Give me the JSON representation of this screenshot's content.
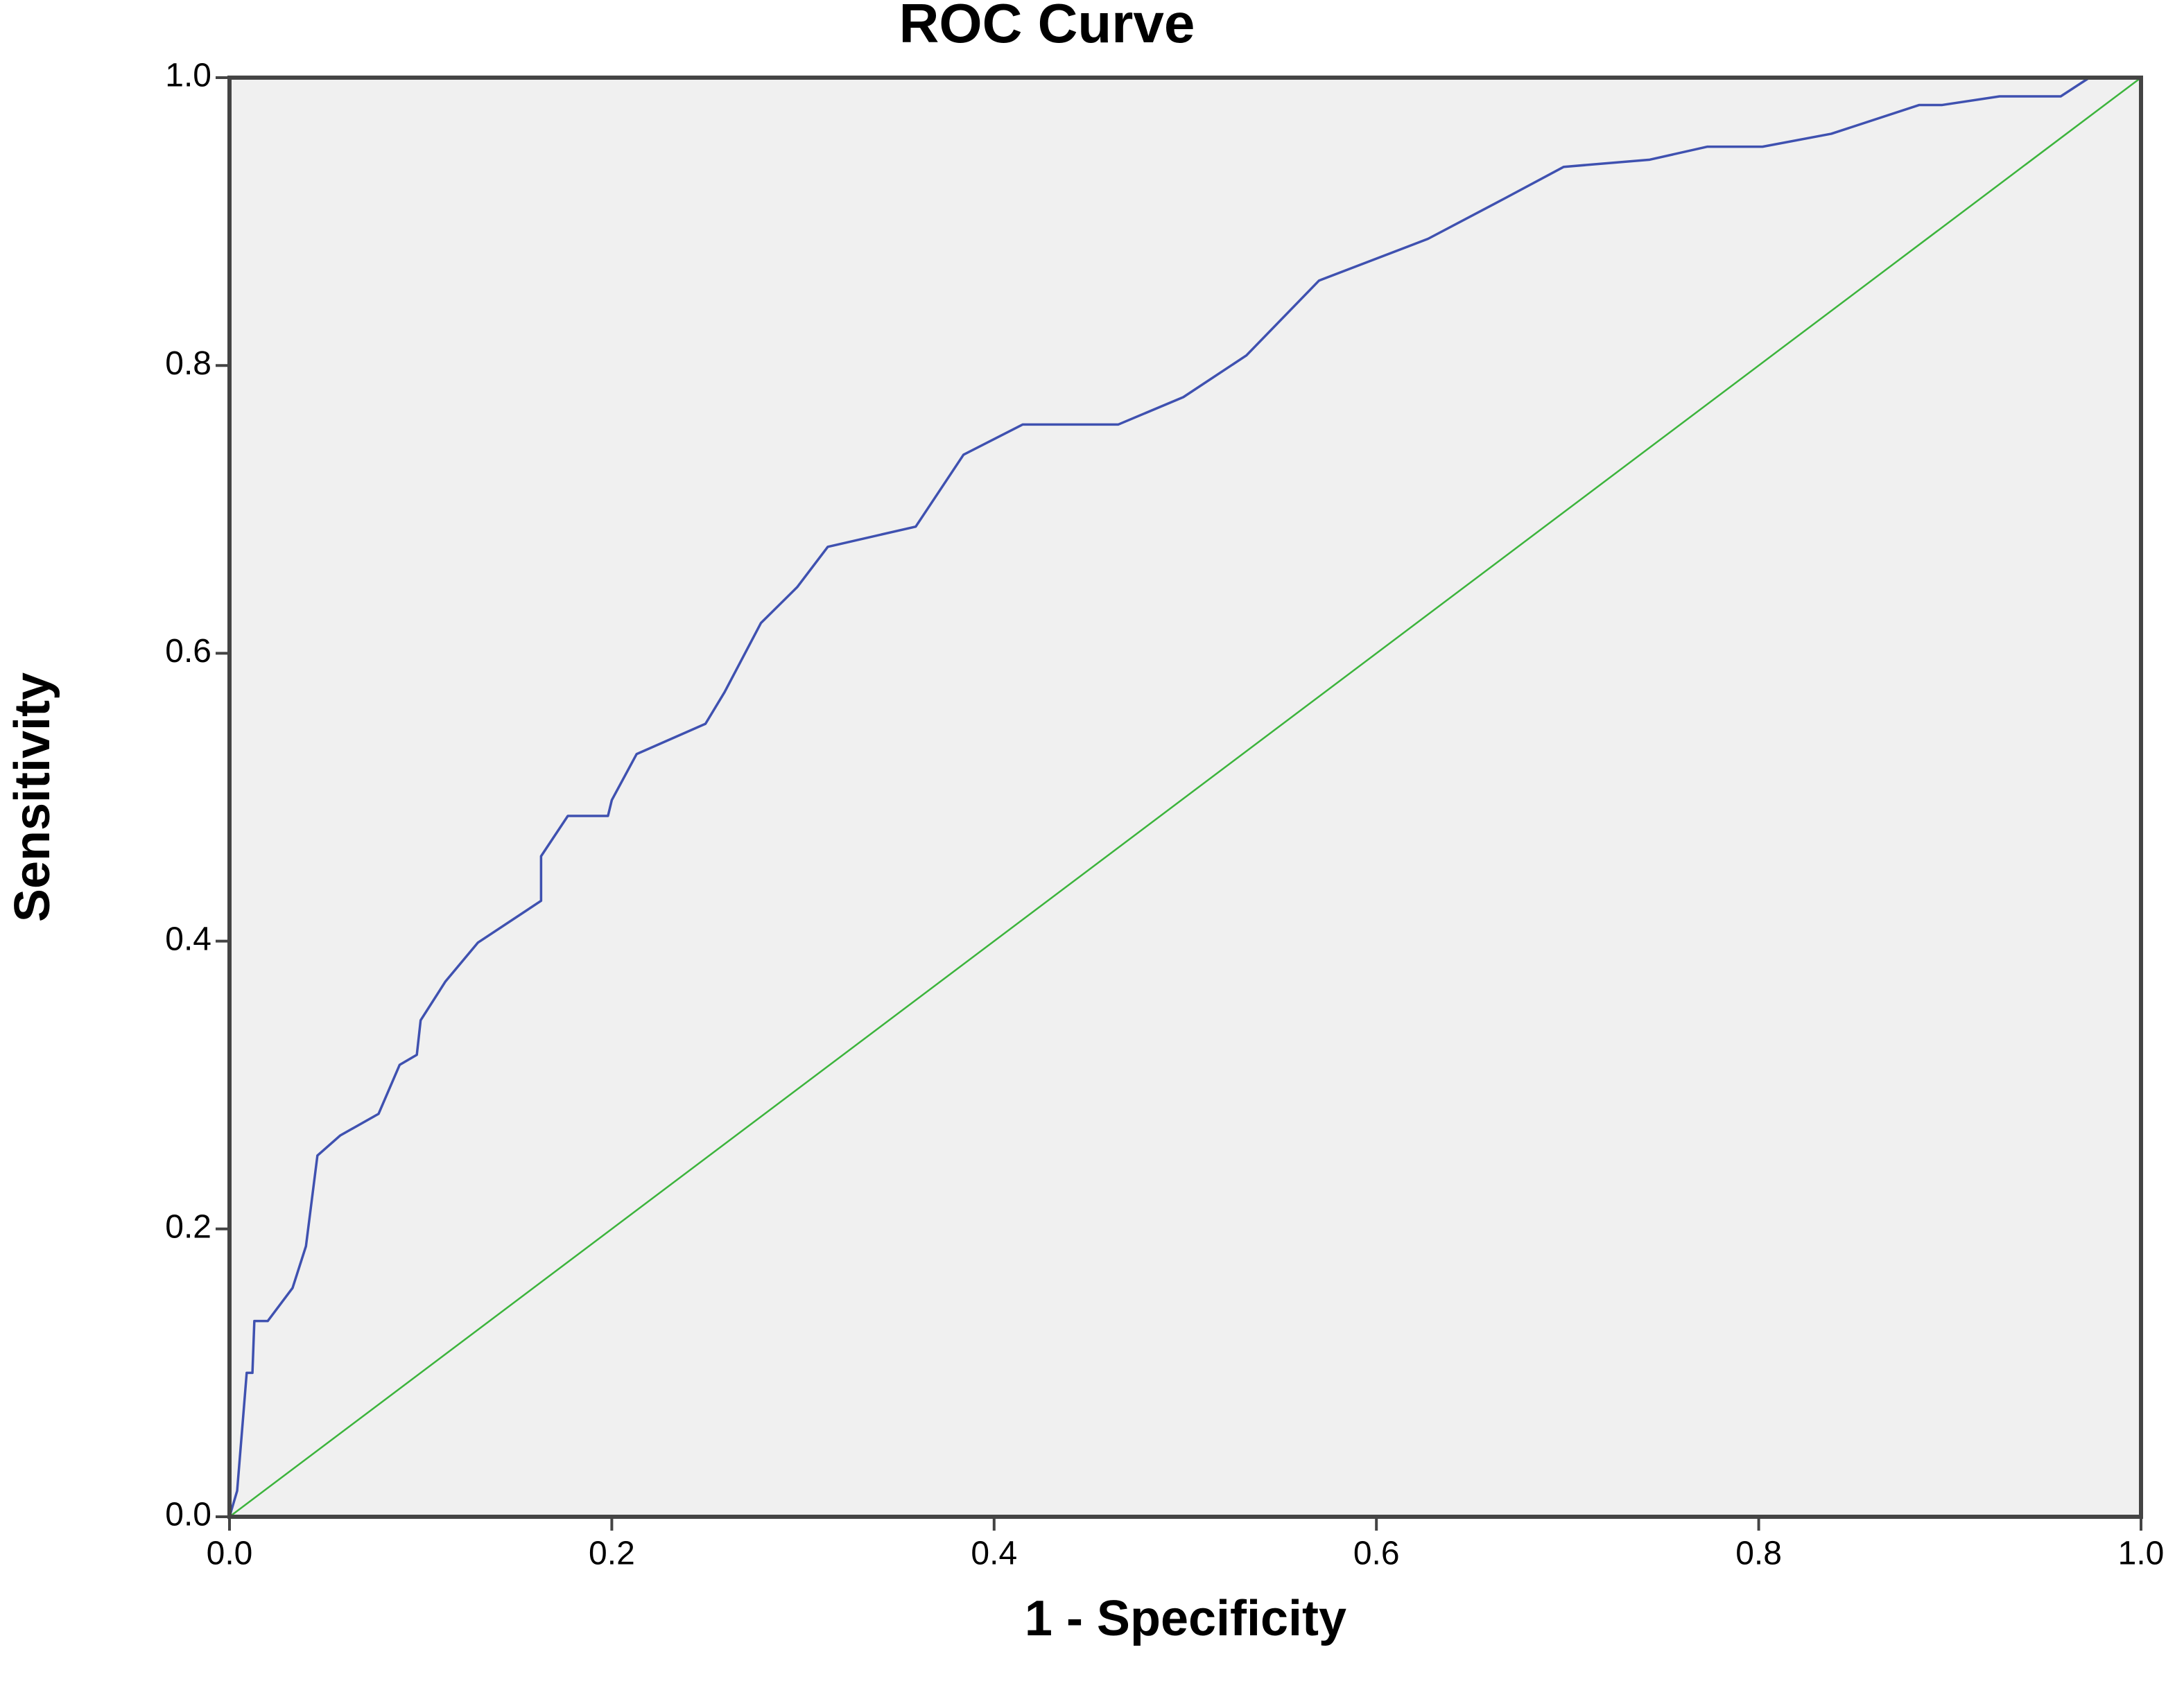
{
  "chart_data": {
    "type": "line",
    "title": "ROC Curve",
    "xlabel": "1 - Specificity",
    "ylabel": "Sensitivity",
    "xlim": [
      0,
      1
    ],
    "ylim": [
      0,
      1
    ],
    "xticks": [
      {
        "value": 0,
        "label": "0.0"
      },
      0.2,
      0.4,
      0.6,
      0.8,
      {
        "value": 1,
        "label": "1.0"
      }
    ],
    "yticks": [
      {
        "value": 0,
        "label": "0.0"
      },
      0.2,
      0.4,
      0.6,
      0.8,
      {
        "value": 1,
        "label": "1.0"
      }
    ],
    "grid": false,
    "background": "#f0f0f0",
    "series": [
      {
        "color": "#3f51b0",
        "x": [
          0,
          0.004,
          0.007,
          0.009,
          0.012,
          0.013,
          0.02,
          0.033,
          0.04,
          0.046,
          0.058,
          0.078,
          0.089,
          0.098,
          0.1,
          0.113,
          0.13,
          0.163,
          0.163,
          0.177,
          0.198,
          0.2,
          0.213,
          0.249,
          0.259,
          0.278,
          0.297,
          0.313,
          0.359,
          0.384,
          0.415,
          0.465,
          0.499,
          0.532,
          0.57,
          0.627,
          0.667,
          0.698,
          0.743,
          0.773,
          0.802,
          0.838,
          0.884,
          0.896,
          0.926,
          0.958,
          0.973,
          1
        ],
        "values": [
          0,
          0.018,
          0.067,
          0.1,
          0.1,
          0.136,
          0.136,
          0.159,
          0.188,
          0.251,
          0.265,
          0.28,
          0.314,
          0.321,
          0.345,
          0.372,
          0.399,
          0.428,
          0.459,
          0.487,
          0.487,
          0.498,
          0.53,
          0.551,
          0.573,
          0.621,
          0.646,
          0.674,
          0.688,
          0.738,
          0.759,
          0.759,
          0.778,
          0.807,
          0.859,
          0.888,
          0.916,
          0.938,
          0.943,
          0.952,
          0.952,
          0.961,
          0.981,
          0.981,
          0.987,
          0.987,
          1,
          1
        ]
      },
      {
        "color": "#3cb43c",
        "x": [
          0,
          1
        ],
        "values": [
          0,
          1
        ]
      }
    ]
  }
}
